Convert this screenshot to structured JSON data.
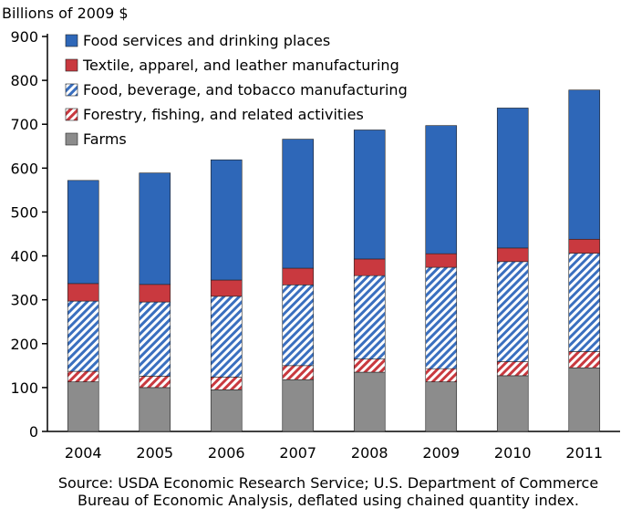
{
  "chart_data": {
    "type": "bar",
    "stacked": true,
    "ylabel": "Billions of 2009 $",
    "ylim": [
      0,
      900
    ],
    "yticks": [
      0,
      100,
      200,
      300,
      400,
      500,
      600,
      700,
      800,
      900
    ],
    "categories": [
      "2004",
      "2005",
      "2006",
      "2007",
      "2008",
      "2009",
      "2010",
      "2011"
    ],
    "series": [
      {
        "name": "Farms",
        "color": "#8c8c8c",
        "pattern": "solid",
        "values": [
          113,
          100,
          95,
          118,
          135,
          113,
          127,
          145
        ]
      },
      {
        "name": "Forestry, fishing, and related activities",
        "color": "#c9393f",
        "pattern": "hatch",
        "values": [
          24,
          26,
          29,
          32,
          30,
          30,
          32,
          37
        ]
      },
      {
        "name": "Food, beverage, and tobacco manufacturing",
        "color": "#3a6fbf",
        "pattern": "hatch",
        "values": [
          160,
          169,
          184,
          184,
          190,
          231,
          228,
          224
        ]
      },
      {
        "name": "Textile, apparel, and leather manufacturing",
        "color": "#c9393f",
        "pattern": "solid",
        "values": [
          40,
          40,
          37,
          38,
          38,
          31,
          31,
          32
        ]
      },
      {
        "name": "Food services and drinking places",
        "color": "#2e67b8",
        "pattern": "solid",
        "values": [
          235,
          254,
          274,
          294,
          294,
          292,
          319,
          340
        ]
      }
    ],
    "legend_order": [
      "Food services and drinking places",
      "Textile, apparel, and leather manufacturing",
      "Food, beverage, and tobacco manufacturing",
      "Forestry, fishing, and related activities",
      "Farms"
    ],
    "legend_position": "top-left",
    "grid": false
  },
  "source": {
    "line1": "Source: USDA Economic Research Service; U.S. Department of Commerce",
    "line2": "Bureau of Economic Analysis, deflated using chained quantity index."
  }
}
